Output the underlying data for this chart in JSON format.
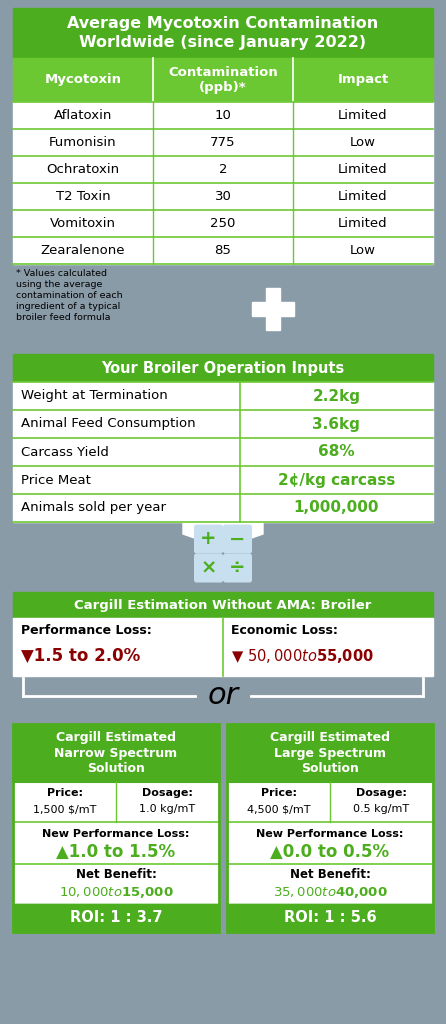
{
  "bg_color": "#8a9ba8",
  "green_dark": "#4cae1e",
  "green_light": "#6cc832",
  "white": "#ffffff",
  "black": "#000000",
  "red_dark": "#8b0000",
  "table1_title": "Average Mycotoxin Contamination\nWorldwide (since January 2022)",
  "table1_headers": [
    "Mycotoxin",
    "Contamination\n(ppb)*",
    "Impact"
  ],
  "table1_rows": [
    [
      "Aflatoxin",
      "10",
      "Limited"
    ],
    [
      "Fumonisin",
      "775",
      "Low"
    ],
    [
      "Ochratoxin",
      "2",
      "Limited"
    ],
    [
      "T2 Toxin",
      "30",
      "Limited"
    ],
    [
      "Vomitoxin",
      "250",
      "Limited"
    ],
    [
      "Zearalenone",
      "85",
      "Low"
    ]
  ],
  "footnote": "* Values calculated\nusing the average\ncontamination of each\ningredient of a typical\nbroiler feed formula",
  "table2_title": "Your Broiler Operation Inputs",
  "table2_rows": [
    [
      "Weight at Termination",
      "2.2kg"
    ],
    [
      "Animal Feed Consumption",
      "3.6kg"
    ],
    [
      "Carcass Yield",
      "68%"
    ],
    [
      "Price Meat",
      "2¢/kg carcass"
    ],
    [
      "Animals sold per year",
      "1,000,000"
    ]
  ],
  "estimation_title": "Cargill Estimation Without AMA: Broiler",
  "perf_loss_label": "Performance Loss:",
  "perf_loss_value": "▼1.5 to 2.0%",
  "econ_loss_label": "Economic Loss:",
  "econ_loss_value": "▼ $50,000 to $55,000",
  "or_text": "or",
  "narrow_title": "Cargill Estimated\nNarrow Spectrum\nSolution",
  "large_title": "Cargill Estimated\nLarge Spectrum\nSolution",
  "narrow_price_label": "Price:",
  "narrow_price_val": "1,500 $/mT",
  "narrow_dosage_label": "Dosage:",
  "narrow_dosage_val": "1.0 kg/mT",
  "large_price_label": "Price:",
  "large_price_val": "4,500 $/mT",
  "large_dosage_label": "Dosage:",
  "large_dosage_val": "0.5 kg/mT",
  "narrow_perf_label": "New Performance Loss:",
  "narrow_perf_val": "▲1.0 to 1.5%",
  "large_perf_label": "New Performance Loss:",
  "large_perf_val": "▲0.0 to 0.5%",
  "narrow_benefit_label": "Net Benefit:",
  "narrow_benefit_val": "$10,000 to $15,000",
  "large_benefit_label": "Net Benefit:",
  "large_benefit_val": "$35,000 to $40,000",
  "narrow_roi": "ROI: 1 : 3.7",
  "large_roi": "ROI: 1 : 5.6",
  "calc_bg": "#c8dff0",
  "calc_sym": "#4cae1e"
}
